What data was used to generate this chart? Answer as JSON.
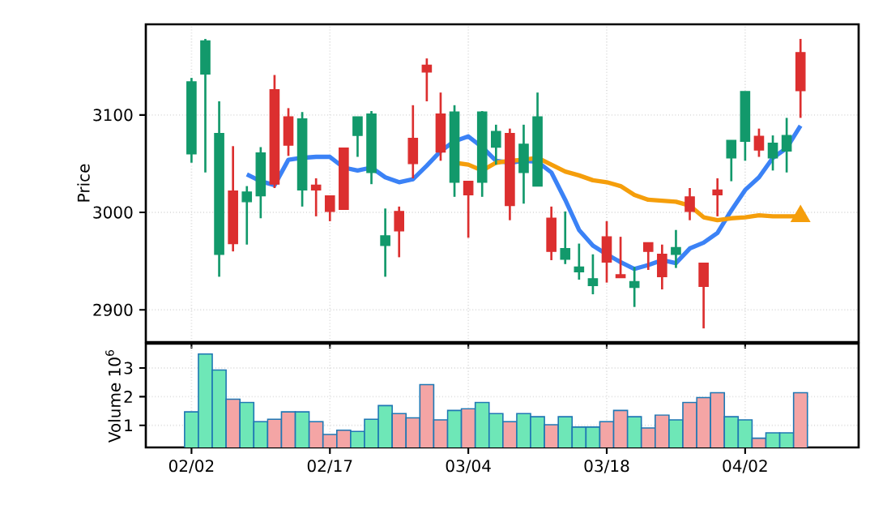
{
  "chart_data": [
    {
      "type": "candlestick",
      "ylabel": "Price",
      "categories": [
        null,
        null,
        null,
        null,
        null,
        null,
        null,
        null,
        null,
        null,
        null,
        null,
        null,
        null,
        null,
        null,
        null,
        null,
        null,
        null,
        null,
        null,
        null,
        null,
        null,
        null,
        null,
        null,
        null,
        null,
        null,
        null,
        null,
        null,
        null,
        null,
        null,
        null,
        null,
        null,
        null,
        null,
        null,
        null,
        null
      ],
      "ohlc": [
        [
          3060,
          3138,
          3051,
          3134
        ],
        [
          3142,
          3178,
          3041,
          3176
        ],
        [
          2957,
          3114,
          2934,
          3081
        ],
        [
          3022,
          3068,
          2960,
          2968
        ],
        [
          3011,
          3027,
          2967,
          3021
        ],
        [
          3017,
          3067,
          2994,
          3061
        ],
        [
          3126,
          3141,
          3025,
          3029
        ],
        [
          3098,
          3107,
          3058,
          3069
        ],
        [
          3023,
          3103,
          3006,
          3096
        ],
        [
          3028,
          3035,
          2996,
          3023
        ],
        [
          3017,
          3017,
          2991,
          3001
        ],
        [
          3066,
          3066,
          3003,
          3003
        ],
        [
          3079,
          3098,
          3057,
          3098
        ],
        [
          3041,
          3104,
          3029,
          3101
        ],
        [
          2966,
          3004,
          2934,
          2976
        ],
        [
          3001,
          3006,
          2954,
          2981
        ],
        [
          3076,
          3110,
          3035,
          3050
        ],
        [
          3151,
          3158,
          3114,
          3144
        ],
        [
          3101,
          3123,
          3053,
          3062
        ],
        [
          3031,
          3110,
          3016,
          3103
        ],
        [
          3032,
          3032,
          2974,
          3018
        ],
        [
          3031,
          3104,
          3016,
          3103
        ],
        [
          3067,
          3090,
          3049,
          3083
        ],
        [
          3081,
          3086,
          2992,
          3007
        ],
        [
          3041,
          3090,
          3009,
          3070
        ],
        [
          3027,
          3123,
          3027,
          3098
        ],
        [
          2994,
          3006,
          2951,
          2960
        ],
        [
          2952,
          3001,
          2947,
          2963
        ],
        [
          2939,
          2968,
          2931,
          2944
        ],
        [
          2925,
          2957,
          2916,
          2932
        ],
        [
          2975,
          2991,
          2928,
          2949
        ],
        [
          2936,
          2975,
          2933,
          2933
        ],
        [
          2923,
          2944,
          2903,
          2929
        ],
        [
          2969,
          2969,
          2941,
          2960
        ],
        [
          2957,
          2967,
          2921,
          2934
        ],
        [
          2957,
          2982,
          2943,
          2964
        ],
        [
          3016,
          3025,
          2992,
          3001
        ],
        [
          2948,
          2948,
          2881,
          2924
        ],
        [
          3023,
          3035,
          2996,
          3018
        ],
        [
          3056,
          3074,
          3032,
          3074
        ],
        [
          3073,
          3124,
          3053,
          3124
        ],
        [
          3078,
          3086,
          3057,
          3064
        ],
        [
          3056,
          3079,
          3043,
          3071
        ],
        [
          3063,
          3097,
          3041,
          3079
        ],
        [
          3164,
          3178,
          3097,
          3125
        ]
      ],
      "colors": [
        "#12996b",
        "#12996b",
        "#12996b",
        "#dc2f2f",
        "#12996b",
        "#12996b",
        "#dc2f2f",
        "#dc2f2f",
        "#12996b",
        "#dc2f2f",
        "#dc2f2f",
        "#dc2f2f",
        "#12996b",
        "#12996b",
        "#12996b",
        "#dc2f2f",
        "#dc2f2f",
        "#dc2f2f",
        "#dc2f2f",
        "#12996b",
        "#dc2f2f",
        "#12996b",
        "#12996b",
        "#dc2f2f",
        "#12996b",
        "#12996b",
        "#dc2f2f",
        "#12996b",
        "#12996b",
        "#12996b",
        "#dc2f2f",
        "#dc2f2f",
        "#12996b",
        "#dc2f2f",
        "#dc2f2f",
        "#12996b",
        "#dc2f2f",
        "#dc2f2f",
        "#dc2f2f",
        "#12996b",
        "#12996b",
        "#dc2f2f",
        "#12996b",
        "#12996b",
        "#dc2f2f"
      ],
      "series": [
        {
          "type": "line",
          "color": "#3b82f6",
          "values": [
            null,
            null,
            null,
            null,
            3039,
            3032,
            3028,
            3054,
            3056,
            3057,
            3057,
            3046,
            3043,
            3046,
            3036,
            3031,
            3034,
            3048,
            3063,
            3073,
            3078,
            3067,
            3053,
            3051,
            3053,
            3052,
            3041,
            3013,
            2982,
            2966,
            2957,
            2949,
            2942,
            2946,
            2951,
            2948,
            2963,
            2969,
            2979,
            3002,
            3023,
            3036,
            3056,
            3066,
            3089
          ]
        },
        {
          "type": "line",
          "color": "#f59e0b",
          "values": [
            null,
            null,
            null,
            null,
            null,
            null,
            null,
            null,
            null,
            null,
            null,
            null,
            null,
            null,
            null,
            null,
            null,
            null,
            null,
            3051,
            3049,
            3043,
            3051,
            3053,
            3054,
            3056,
            3049,
            3042,
            3038,
            3033,
            3031,
            3027,
            3018,
            3013,
            3012,
            3011,
            3007,
            2995,
            2992,
            2994,
            2995,
            2997,
            2996,
            2996,
            2996
          ]
        },
        {
          "type": "scatter",
          "color": "#f59e0b",
          "marker": "triangle",
          "values": [
            null,
            null,
            null,
            null,
            null,
            null,
            null,
            null,
            null,
            null,
            null,
            null,
            null,
            null,
            null,
            null,
            null,
            null,
            null,
            null,
            null,
            null,
            null,
            null,
            null,
            null,
            null,
            null,
            null,
            null,
            null,
            null,
            null,
            null,
            null,
            null,
            null,
            null,
            null,
            null,
            null,
            null,
            null,
            null,
            2996
          ]
        }
      ],
      "ylim": [
        2867,
        3193
      ],
      "yticks": [
        2900,
        3000,
        3100
      ],
      "grid": true,
      "tick_labels": "y"
    },
    {
      "type": "bar",
      "ylabel": "Volume 10$^{6}$",
      "categories": [
        "02/02",
        null,
        null,
        null,
        null,
        null,
        null,
        null,
        null,
        null,
        "02/17",
        null,
        null,
        null,
        null,
        null,
        null,
        null,
        null,
        null,
        "03/04",
        null,
        null,
        null,
        null,
        null,
        null,
        null,
        null,
        null,
        "03/18",
        null,
        null,
        null,
        null,
        null,
        null,
        null,
        null,
        null,
        "04/02",
        null,
        null,
        null,
        null
      ],
      "values": [
        1.47,
        3.49,
        2.93,
        1.91,
        1.8,
        1.13,
        1.21,
        1.47,
        1.47,
        1.13,
        0.68,
        0.83,
        0.79,
        1.21,
        1.69,
        1.41,
        1.26,
        2.42,
        1.19,
        1.52,
        1.58,
        1.8,
        1.41,
        1.13,
        1.41,
        1.3,
        1.02,
        1.3,
        0.94,
        0.94,
        1.13,
        1.52,
        1.3,
        0.91,
        1.36,
        1.19,
        1.8,
        1.97,
        2.14,
        1.3,
        1.19,
        0.55,
        0.74,
        0.74,
        2.14
      ],
      "colors": [
        "#6ee7b7",
        "#6ee7b7",
        "#6ee7b7",
        "#f4a5a5",
        "#6ee7b7",
        "#6ee7b7",
        "#f4a5a5",
        "#f4a5a5",
        "#6ee7b7",
        "#f4a5a5",
        "#f4a5a5",
        "#f4a5a5",
        "#6ee7b7",
        "#6ee7b7",
        "#6ee7b7",
        "#f4a5a5",
        "#f4a5a5",
        "#f4a5a5",
        "#f4a5a5",
        "#6ee7b7",
        "#f4a5a5",
        "#6ee7b7",
        "#6ee7b7",
        "#f4a5a5",
        "#6ee7b7",
        "#6ee7b7",
        "#f4a5a5",
        "#6ee7b7",
        "#6ee7b7",
        "#6ee7b7",
        "#f4a5a5",
        "#f4a5a5",
        "#6ee7b7",
        "#f4a5a5",
        "#f4a5a5",
        "#6ee7b7",
        "#f4a5a5",
        "#f4a5a5",
        "#f4a5a5",
        "#6ee7b7",
        "#6ee7b7",
        "#f4a5a5",
        "#6ee7b7",
        "#6ee7b7",
        "#f4a5a5"
      ],
      "ylim": [
        0.23,
        3.85
      ],
      "yticks": [
        1,
        2,
        3
      ],
      "grid": true
    }
  ]
}
